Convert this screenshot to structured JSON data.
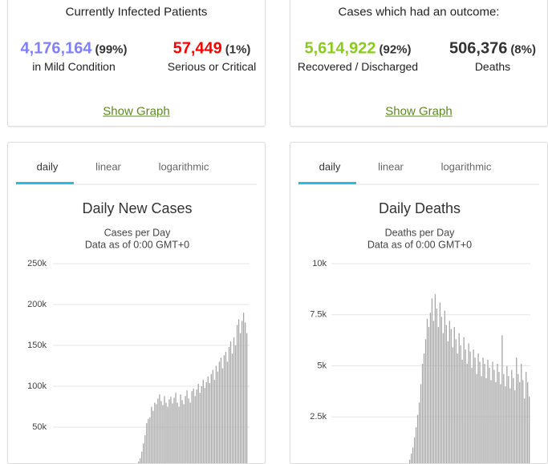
{
  "panels": [
    {
      "header": "Currently Infected Patients",
      "stats": [
        {
          "value": "4,176,164",
          "percent": "(99%)",
          "label": "in Mild Condition",
          "color": "#8080ff"
        },
        {
          "value": "57,449",
          "percent": "(1%)",
          "label": "Serious or Critical",
          "color": "#ff0000"
        }
      ],
      "link": "Show Graph"
    },
    {
      "header": "Cases which had an outcome:",
      "stats": [
        {
          "value": "5,614,922",
          "percent": "(92%)",
          "label": "Recovered / Discharged",
          "color": "#8acc1c"
        },
        {
          "value": "506,376",
          "percent": "(8%)",
          "label": "Deaths",
          "color": "#333333"
        }
      ],
      "link": "Show Graph"
    }
  ],
  "charts": [
    {
      "tabs": [
        "daily",
        "linear",
        "logarithmic"
      ],
      "active_tab": 0,
      "title": "Daily New Cases",
      "subtitle": "Cases per Day",
      "note": "Data as of 0:00 GMT+0",
      "ylim": [
        0,
        250000
      ],
      "yticks": [
        {
          "value": 50000,
          "label": "50k"
        },
        {
          "value": 100000,
          "label": "100k"
        },
        {
          "value": 150000,
          "label": "150k"
        },
        {
          "value": 200000,
          "label": "200k"
        },
        {
          "value": 250000,
          "label": "250k"
        }
      ],
      "color": "#a6a6a6",
      "values": [
        1000,
        2000,
        3000,
        5000,
        8000,
        12000,
        20000,
        30000,
        40000,
        55000,
        60000,
        62000,
        75000,
        70000,
        80000,
        78000,
        85000,
        90000,
        82000,
        77000,
        88000,
        80000,
        75000,
        84000,
        87000,
        79000,
        86000,
        92000,
        80000,
        75000,
        90000,
        83000,
        78000,
        88000,
        95000,
        85000,
        80000,
        94000,
        97000,
        88000,
        96000,
        103000,
        92000,
        100000,
        108000,
        98000,
        105000,
        112000,
        104000,
        115000,
        120000,
        108000,
        125000,
        118000,
        130000,
        135000,
        122000,
        138000,
        142000,
        130000,
        148000,
        155000,
        140000,
        160000,
        150000,
        175000,
        182000,
        165000,
        180000,
        190000,
        178000,
        165000
      ]
    },
    {
      "tabs": [
        "daily",
        "linear",
        "logarithmic"
      ],
      "active_tab": 0,
      "title": "Daily Deaths",
      "subtitle": "Deaths per Day",
      "note": "Data as of 0:00 GMT+0",
      "ylim": [
        0,
        10000
      ],
      "yticks": [
        {
          "value": 2500,
          "label": "2.5k"
        },
        {
          "value": 5000,
          "label": "5k"
        },
        {
          "value": 7500,
          "label": "7.5k"
        },
        {
          "value": 10000,
          "label": "10k"
        }
      ],
      "color": "#a6a6a6",
      "values": [
        100,
        200,
        400,
        700,
        1000,
        1500,
        2000,
        2600,
        3200,
        4100,
        5100,
        5600,
        6300,
        7300,
        6900,
        7600,
        8300,
        7200,
        8500,
        7800,
        6900,
        8100,
        7400,
        6600,
        7700,
        7000,
        6200,
        7200,
        6800,
        5900,
        6900,
        6300,
        5600,
        6600,
        6000,
        5300,
        6400,
        5800,
        5100,
        6100,
        5700,
        4900,
        5800,
        5400,
        4600,
        5600,
        5200,
        4500,
        5400,
        5100,
        4400,
        5300,
        4900,
        4300,
        5200,
        4800,
        4200,
        5100,
        4700,
        4100,
        6500,
        4600,
        4000,
        5000,
        4500,
        3900,
        4800,
        4400,
        3800,
        5400,
        4600,
        4200,
        5100,
        4300,
        3400,
        4700,
        4200,
        3500
      ]
    }
  ]
}
